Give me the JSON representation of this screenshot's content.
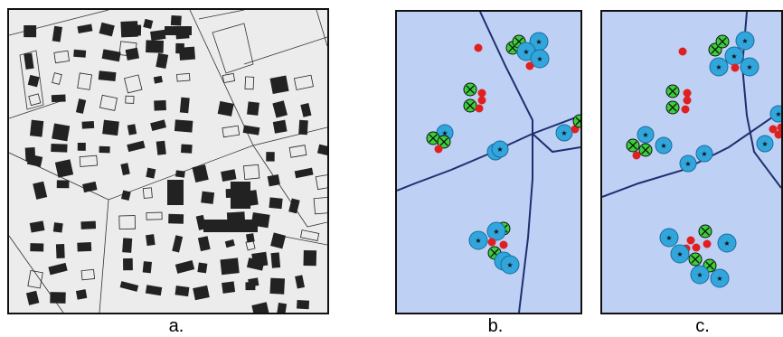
{
  "figure": {
    "panels": [
      {
        "id": "a",
        "caption": "a.",
        "content": "aerial-image-buildings"
      },
      {
        "id": "b",
        "caption": "b.",
        "content": "symbol-map"
      },
      {
        "id": "c",
        "caption": "c.",
        "content": "symbol-map"
      }
    ]
  },
  "colors": {
    "map_background": "#bfd0f5",
    "road": "#1f2f6e",
    "building_symbol": "#31a6dd",
    "green_symbol": "#3ccf3c",
    "red_dot": "#e02020",
    "aerial_background": "#ececec",
    "building_dark": "#222222"
  },
  "legend_glyphs": {
    "blue_circle_mark": "★",
    "green_circle_mark": "✕"
  }
}
